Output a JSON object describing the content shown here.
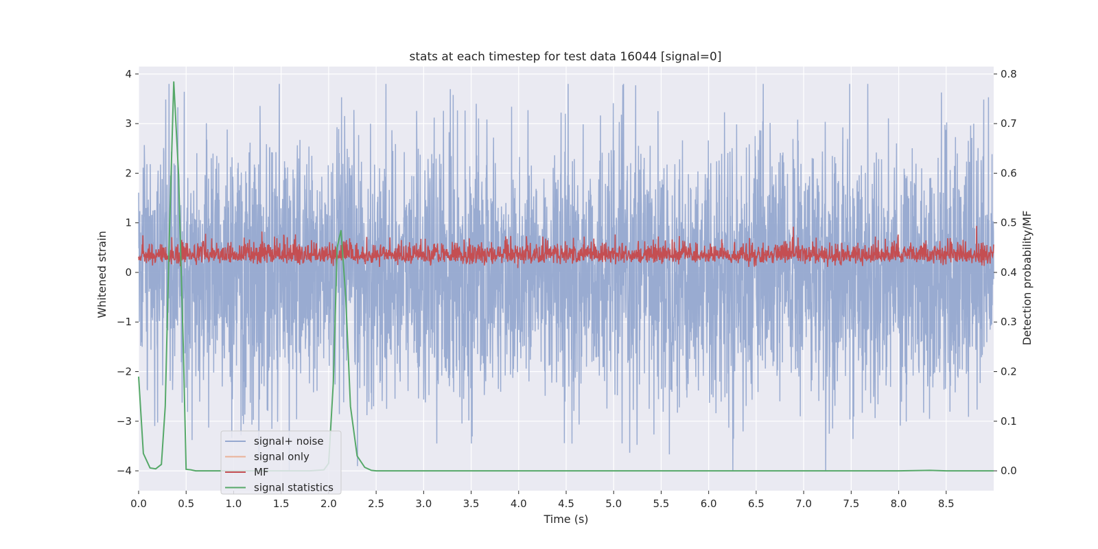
{
  "chart_data": {
    "type": "line",
    "title": "stats at each timestep for test data 16044 [signal=0]",
    "xlabel": "Time (s)",
    "ylabel": "Whitened strain",
    "ylabel_right": "Detection probability/MF",
    "xlim": [
      0,
      9.0
    ],
    "ylim": [
      -4.4,
      4.15
    ],
    "ylim_right": [
      -0.04,
      0.815
    ],
    "x_ticks": [
      "0.0",
      "0.5",
      "1.0",
      "1.5",
      "2.0",
      "2.5",
      "3.0",
      "3.5",
      "4.0",
      "4.5",
      "5.0",
      "5.5",
      "6.0",
      "6.5",
      "7.0",
      "7.5",
      "8.0",
      "8.5"
    ],
    "y_ticks": [
      "4",
      "3",
      "2",
      "1",
      "0",
      "−1",
      "−2",
      "−3",
      "−4"
    ],
    "y_ticks_right": [
      "0.8",
      "0.7",
      "0.6",
      "0.5",
      "0.4",
      "0.3",
      "0.2",
      "0.1",
      "0.0"
    ],
    "grid": true,
    "legend_position": "lower-left",
    "colors": {
      "signal_noise": "#95a8cf",
      "signal_only": "#eab197",
      "mf": "#c44e52",
      "signal_statistics": "#55a868",
      "plot_bg": "#eaeaf2",
      "grid": "#ffffff"
    },
    "series": [
      {
        "name": "signal+ noise",
        "axis": "left",
        "description_range": [
          -4.0,
          3.8
        ],
        "typical_amplitude": 1.3
      },
      {
        "name": "signal only",
        "axis": "left",
        "values": []
      },
      {
        "name": "MF",
        "axis": "left",
        "typical_range": [
          0.0,
          1.0
        ]
      },
      {
        "name": "signal statistics",
        "axis": "right",
        "x": [
          0.0,
          0.05,
          0.12,
          0.18,
          0.24,
          0.28,
          0.32,
          0.37,
          0.42,
          0.47,
          0.5,
          0.55,
          0.6,
          1.0,
          1.5,
          1.8,
          1.95,
          2.0,
          2.05,
          2.09,
          2.13,
          2.18,
          2.23,
          2.3,
          2.38,
          2.45,
          2.5,
          3.0,
          4.0,
          5.0,
          6.0,
          7.0,
          8.0,
          8.33,
          8.5,
          9.0
        ],
        "values": [
          0.19,
          0.035,
          0.006,
          0.004,
          0.013,
          0.13,
          0.45,
          0.785,
          0.6,
          0.25,
          0.003,
          0.002,
          0.0,
          0.0,
          0.0,
          0.0,
          0.002,
          0.015,
          0.18,
          0.45,
          0.485,
          0.35,
          0.13,
          0.03,
          0.007,
          0.001,
          0.0,
          0.0,
          0.0,
          0.0,
          0.0,
          0.0,
          0.0,
          0.001,
          0.0,
          0.0
        ]
      }
    ]
  }
}
